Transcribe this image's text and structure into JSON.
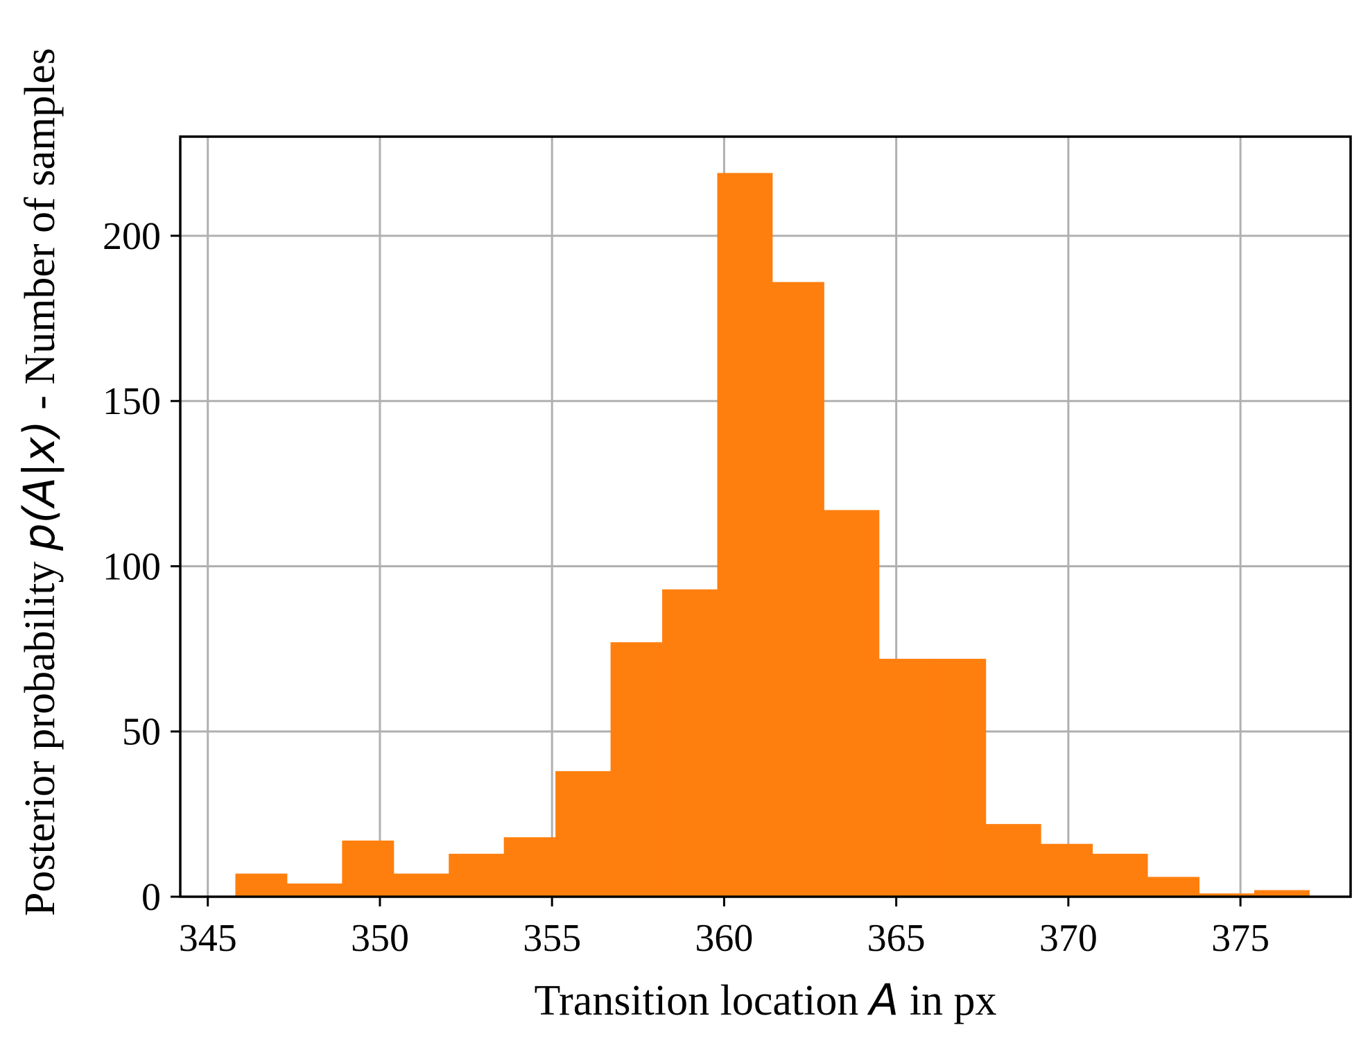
{
  "chart_data": {
    "type": "histogram",
    "xlabel": "Transition location A in px",
    "xlabel_parts": {
      "pre": "Transition location ",
      "math": "A",
      "post": " in px"
    },
    "ylabel": "Posterior probability p(A|x) - Number of samples",
    "ylabel_parts": {
      "pre": "Posterior probability ",
      "math": "p(A|x)",
      "post": " - Number of samples"
    },
    "xlim": [
      344.2,
      378.2
    ],
    "ylim": [
      0,
      230
    ],
    "xticks": [
      345,
      350,
      355,
      360,
      365,
      370,
      375
    ],
    "yticks": [
      0,
      50,
      100,
      150,
      200
    ],
    "grid": true,
    "bar_color": "#ff7f0e",
    "bins": [
      {
        "x0": 345.8,
        "x1": 347.3,
        "count": 7
      },
      {
        "x0": 347.3,
        "x1": 348.9,
        "count": 4
      },
      {
        "x0": 348.9,
        "x1": 350.4,
        "count": 17
      },
      {
        "x0": 350.4,
        "x1": 352.0,
        "count": 7
      },
      {
        "x0": 352.0,
        "x1": 353.6,
        "count": 13
      },
      {
        "x0": 353.6,
        "x1": 355.1,
        "count": 18
      },
      {
        "x0": 355.1,
        "x1": 356.7,
        "count": 38
      },
      {
        "x0": 356.7,
        "x1": 358.2,
        "count": 77
      },
      {
        "x0": 358.2,
        "x1": 359.8,
        "count": 93
      },
      {
        "x0": 359.8,
        "x1": 361.4,
        "count": 219
      },
      {
        "x0": 361.4,
        "x1": 362.9,
        "count": 186
      },
      {
        "x0": 362.9,
        "x1": 364.5,
        "count": 117
      },
      {
        "x0": 364.5,
        "x1": 366.0,
        "count": 72
      },
      {
        "x0": 366.0,
        "x1": 367.6,
        "count": 72
      },
      {
        "x0": 367.6,
        "x1": 369.2,
        "count": 22
      },
      {
        "x0": 369.2,
        "x1": 370.7,
        "count": 16
      },
      {
        "x0": 370.7,
        "x1": 372.3,
        "count": 13
      },
      {
        "x0": 372.3,
        "x1": 373.8,
        "count": 6
      },
      {
        "x0": 373.8,
        "x1": 375.4,
        "count": 1
      },
      {
        "x0": 375.4,
        "x1": 377.0,
        "count": 2
      }
    ]
  }
}
